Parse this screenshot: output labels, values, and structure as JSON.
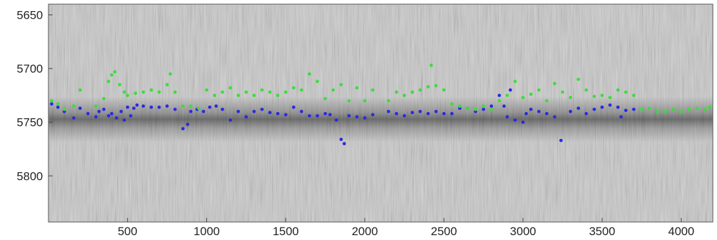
{
  "chart_data": {
    "type": "scatter",
    "title": "",
    "xlabel": "",
    "ylabel": "",
    "xlim": [
      0,
      4200
    ],
    "ylim": [
      5640,
      5843
    ],
    "y_inverted": true,
    "grid": false,
    "legend": "none",
    "background": "grayscale intensity image (dark band near y = 5745)",
    "x_ticks": [
      500,
      1000,
      1500,
      2000,
      2500,
      3000,
      3500,
      4000
    ],
    "x_tick_labels": [
      "500",
      "1000",
      "1500",
      "2000",
      "2500",
      "3000",
      "3500",
      "4000"
    ],
    "y_ticks": [
      5650,
      5700,
      5750,
      5800
    ],
    "y_tick_labels": [
      "5650",
      "5700",
      "5750",
      "5800"
    ],
    "series": [
      {
        "color": "#2a2ae0",
        "x": [
          20,
          60,
          100,
          160,
          200,
          250,
          300,
          320,
          350,
          380,
          400,
          430,
          460,
          480,
          500,
          520,
          540,
          560,
          600,
          650,
          700,
          750,
          800,
          850,
          880,
          900,
          940,
          980,
          1020,
          1060,
          1100,
          1150,
          1200,
          1250,
          1300,
          1350,
          1400,
          1450,
          1500,
          1550,
          1600,
          1650,
          1700,
          1750,
          1780,
          1820,
          1850,
          1870,
          1900,
          1950,
          2000,
          2050,
          2150,
          2200,
          2250,
          2300,
          2350,
          2400,
          2450,
          2500,
          2550,
          2600,
          2650,
          2700,
          2750,
          2800,
          2850,
          2880,
          2900,
          2920,
          2950,
          3000,
          3020,
          3050,
          3100,
          3150,
          3200,
          3240,
          3300,
          3350,
          3400,
          3450,
          3500,
          3550,
          3600,
          3620,
          3650,
          3700
        ],
        "y": [
          5733,
          5736,
          5740,
          5746,
          5737,
          5742,
          5745,
          5740,
          5738,
          5744,
          5742,
          5746,
          5740,
          5748,
          5736,
          5744,
          5737,
          5734,
          5735,
          5736,
          5736,
          5735,
          5738,
          5756,
          5752,
          5740,
          5738,
          5740,
          5736,
          5735,
          5738,
          5748,
          5740,
          5745,
          5740,
          5738,
          5741,
          5742,
          5743,
          5736,
          5740,
          5744,
          5744,
          5742,
          5743,
          5748,
          5766,
          5770,
          5744,
          5745,
          5746,
          5743,
          5740,
          5742,
          5744,
          5741,
          5740,
          5742,
          5740,
          5742,
          5742,
          5737,
          5737,
          5740,
          5738,
          5735,
          5725,
          5735,
          5745,
          5720,
          5748,
          5750,
          5742,
          5738,
          5740,
          5742,
          5745,
          5767,
          5740,
          5737,
          5742,
          5738,
          5736,
          5734,
          5736,
          5745,
          5739,
          5738
        ]
      },
      {
        "color": "#3ddc3d",
        "x": [
          20,
          60,
          100,
          160,
          200,
          300,
          350,
          380,
          400,
          420,
          450,
          480,
          500,
          550,
          600,
          650,
          700,
          750,
          770,
          800,
          850,
          900,
          950,
          1000,
          1050,
          1100,
          1150,
          1200,
          1250,
          1300,
          1350,
          1400,
          1450,
          1500,
          1550,
          1600,
          1650,
          1700,
          1750,
          1800,
          1850,
          1900,
          1950,
          2000,
          2050,
          2150,
          2200,
          2250,
          2300,
          2350,
          2400,
          2420,
          2450,
          2500,
          2550,
          2600,
          2650,
          2700,
          2750,
          2800,
          2850,
          2900,
          2950,
          3000,
          3050,
          3100,
          3150,
          3200,
          3250,
          3300,
          3350,
          3400,
          3450,
          3500,
          3550,
          3600,
          3650,
          3700,
          3750,
          3800,
          3850,
          3900,
          3950,
          4000,
          4050,
          4100,
          4150,
          4180
        ],
        "y": [
          5730,
          5733,
          5738,
          5735,
          5720,
          5735,
          5728,
          5712,
          5706,
          5703,
          5715,
          5722,
          5725,
          5723,
          5722,
          5720,
          5722,
          5715,
          5705,
          5722,
          5735,
          5735,
          5737,
          5720,
          5725,
          5722,
          5718,
          5725,
          5722,
          5725,
          5720,
          5722,
          5725,
          5722,
          5718,
          5720,
          5705,
          5712,
          5728,
          5720,
          5715,
          5730,
          5718,
          5730,
          5720,
          5730,
          5722,
          5725,
          5722,
          5720,
          5717,
          5697,
          5716,
          5720,
          5733,
          5735,
          5737,
          5738,
          5735,
          5738,
          5730,
          5725,
          5712,
          5727,
          5724,
          5720,
          5730,
          5714,
          5722,
          5727,
          5710,
          5720,
          5726,
          5725,
          5727,
          5720,
          5722,
          5725,
          5738,
          5737,
          5740,
          5740,
          5738,
          5740,
          5738,
          5737,
          5738,
          5736
        ]
      }
    ]
  }
}
